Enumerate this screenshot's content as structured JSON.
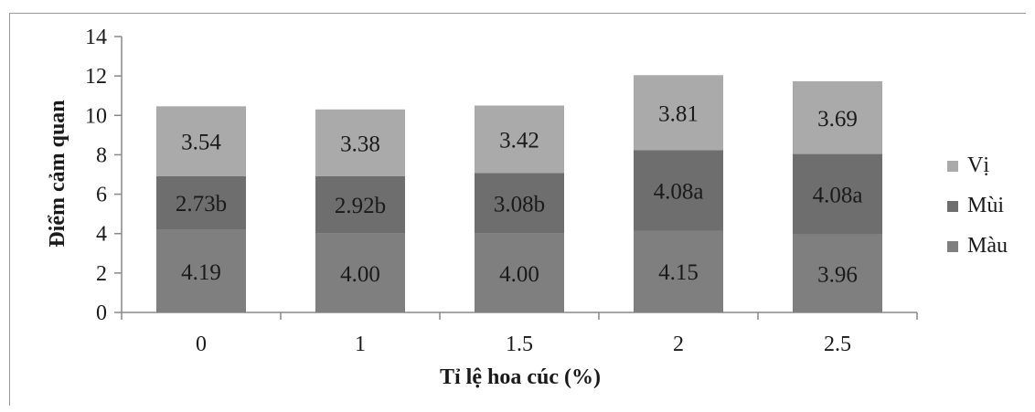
{
  "chart_data": {
    "type": "bar",
    "stacked": true,
    "categories": [
      "0",
      "1",
      "1.5",
      "2",
      "2.5"
    ],
    "xlabel": "Tỉ lệ hoa cúc (%)",
    "ylabel": "Điểm cảm quan",
    "ylim": [
      0,
      14
    ],
    "yticks": [
      0,
      2,
      4,
      6,
      8,
      10,
      12,
      14
    ],
    "grid": false,
    "legend_position": "right",
    "series": [
      {
        "name": "Màu",
        "values": [
          4.19,
          4.0,
          4.0,
          4.15,
          3.96
        ],
        "labels": [
          "4.19",
          "4.00",
          "4.00",
          "4.15",
          "3.96"
        ],
        "color": "#7f7f7f"
      },
      {
        "name": "Mùi",
        "values": [
          2.73,
          2.92,
          3.08,
          4.08,
          4.08
        ],
        "labels": [
          "2.73b",
          "2.92b",
          "3.08b",
          "4.08a",
          "4.08a"
        ],
        "color": "#6e6e6e"
      },
      {
        "name": "Vị",
        "values": [
          3.54,
          3.38,
          3.42,
          3.81,
          3.69
        ],
        "labels": [
          "3.54",
          "3.38",
          "3.42",
          "3.81",
          "3.69"
        ],
        "color": "#aaaaaa"
      }
    ],
    "legend_order": [
      "Vị",
      "Mùi",
      "Màu"
    ]
  }
}
